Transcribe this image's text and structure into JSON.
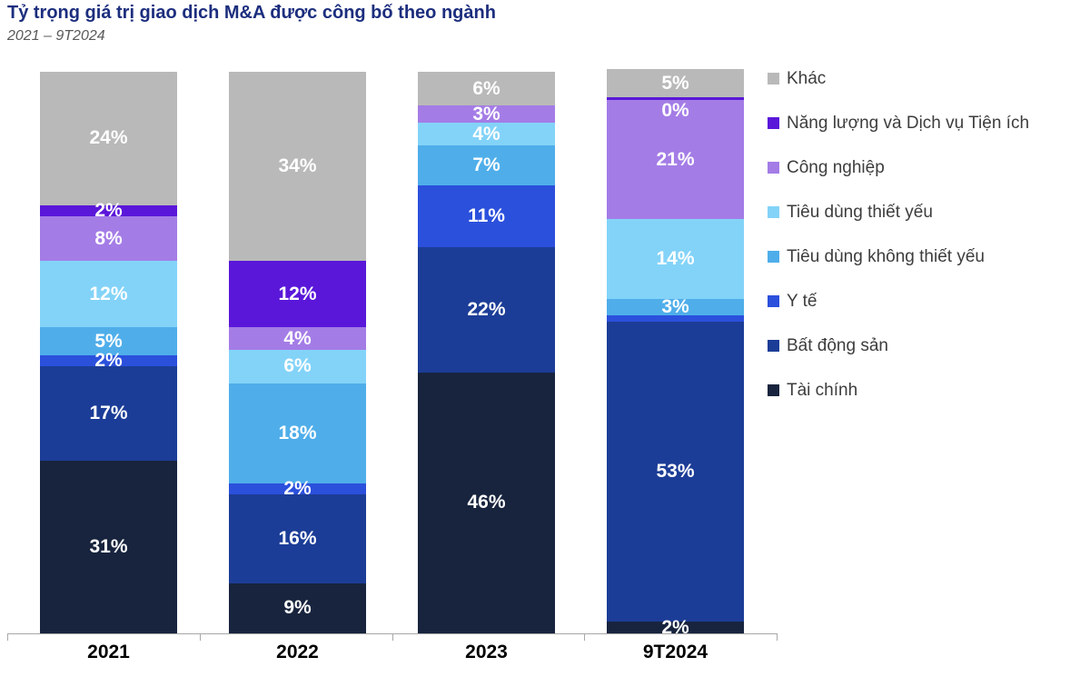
{
  "header": {
    "title": "Tỷ trọng giá trị giao dịch M&A được công bố theo ngành",
    "subtitle": "2021 – 9T2024"
  },
  "colors": {
    "title_text": "#1C2E7E",
    "subtitle_text": "#595959",
    "axis_line": "#A8A8A8",
    "bar_label_text": "#FFFFFF",
    "legend_text": "#3D3D3D"
  },
  "chart_data": {
    "type": "bar",
    "stacked": true,
    "percent": true,
    "unit": "%",
    "title": "Tỷ trọng giá trị giao dịch M&A được công bố theo ngành",
    "subtitle": "2021 – 9T2024",
    "categories": [
      "2021",
      "2022",
      "2023",
      "9T2024"
    ],
    "legend_position": "right",
    "grid": false,
    "ylim": [
      0,
      100
    ],
    "series": [
      {
        "name": "Khác",
        "color": "#B9B9B9",
        "values": [
          24,
          34,
          6,
          5
        ],
        "labels": [
          "24%",
          "34%",
          "6%",
          "5%"
        ]
      },
      {
        "name": "Năng lượng và Dịch vụ Tiện ích",
        "color": "#5A17D9",
        "values": [
          2,
          12,
          0,
          0
        ],
        "labels": [
          "2%",
          "12%",
          "",
          "0%"
        ]
      },
      {
        "name": "Công nghiệp",
        "color": "#A47CE6",
        "values": [
          8,
          4,
          3,
          21
        ],
        "labels": [
          "8%",
          "4%",
          "3%",
          "21%"
        ]
      },
      {
        "name": "Tiêu dùng thiết yếu",
        "color": "#83D3F8",
        "values": [
          12,
          6,
          4,
          14
        ],
        "labels": [
          "12%",
          "6%",
          "4%",
          "14%"
        ]
      },
      {
        "name": "Tiêu dùng không thiết yếu",
        "color": "#4FAEEA",
        "values": [
          5,
          18,
          7,
          3
        ],
        "labels": [
          "5%",
          "18%",
          "7%",
          "3%"
        ]
      },
      {
        "name": "Y tế",
        "color": "#2B50DC",
        "values": [
          2,
          2,
          11,
          1
        ],
        "labels": [
          "2%",
          "2%",
          "11%",
          ""
        ]
      },
      {
        "name": "Bất động sản",
        "color": "#1C3D97",
        "values": [
          17,
          16,
          22,
          53
        ],
        "labels": [
          "17%",
          "16%",
          "22%",
          "53%"
        ]
      },
      {
        "name": "Tài chính",
        "color": "#18243E",
        "values": [
          31,
          9,
          46,
          2
        ],
        "labels": [
          "31%",
          "9%",
          "46%",
          "2%"
        ]
      }
    ]
  }
}
